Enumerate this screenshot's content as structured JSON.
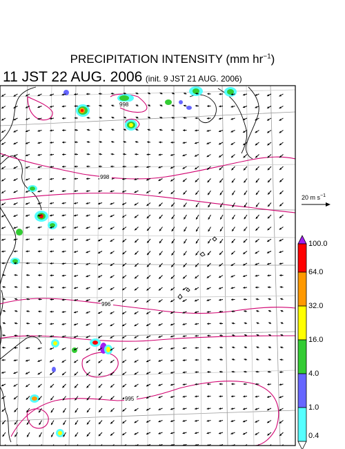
{
  "title": {
    "text": "PRECIPITATION INTENSITY (mm hr",
    "unit_exponent": "−1",
    "close": ")"
  },
  "subtitle": {
    "valid_time": "11 JST 22 AUG. 2006",
    "init_time": "(init. 9 JST 21 AUG. 2006)"
  },
  "wind_reference": {
    "text": "20 m s",
    "exponent": "−1"
  },
  "isobar_labels": [
    "998",
    "998",
    "996",
    "995"
  ],
  "legend": {
    "labels": [
      "100.0",
      "64.0",
      "32.0",
      "16.0",
      "4.0",
      "1.0",
      "0.4"
    ],
    "colors": [
      "#a020f0",
      "#ff0000",
      "#ff9900",
      "#ffff00",
      "#33cc33",
      "#6666ff",
      "#55ffff"
    ]
  }
}
